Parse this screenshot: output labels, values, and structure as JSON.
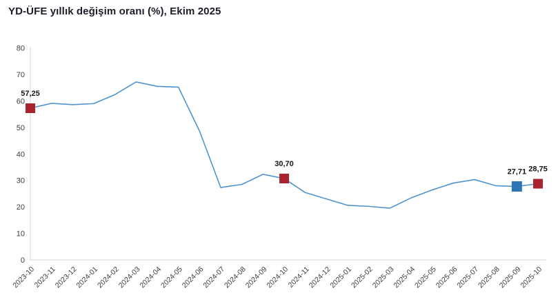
{
  "title": "YD-ÜFE yıllık değişim oranı (%), Ekim 2025",
  "colors": {
    "background": "#ffffff",
    "title_text": "#1b1e28",
    "line": "#4f93ce",
    "marker_red": "#ab232e",
    "marker_blue": "#2e75b6",
    "axis_line": "#d6d6d6",
    "tick_text": "#3c3c3c",
    "data_label_text": "#141414"
  },
  "chart_data": {
    "type": "line",
    "title": "YD-ÜFE yıllık değişim oranı (%), Ekim 2025",
    "xlabel": "",
    "ylabel": "",
    "ylim": [
      0,
      80
    ],
    "yticks": [
      0,
      10,
      20,
      30,
      40,
      50,
      60,
      70,
      80
    ],
    "grid": false,
    "legend": "none",
    "categories": [
      "2023-10",
      "2023-11",
      "2023-12",
      "2024-01",
      "2024-02",
      "2024-03",
      "2024-04",
      "2024-05",
      "2024-06",
      "2024-07",
      "2024-08",
      "2024-09",
      "2024-10",
      "2024-11",
      "2024-12",
      "2025-01",
      "2025-02",
      "2025-03",
      "2025-04",
      "2025-05",
      "2025-06",
      "2025-07",
      "2025-08",
      "2025-09",
      "2025-10"
    ],
    "values": [
      57.25,
      59.1,
      58.6,
      59.0,
      62.4,
      67.2,
      65.5,
      65.2,
      48.6,
      27.3,
      28.5,
      32.3,
      30.7,
      25.4,
      23.0,
      20.6,
      20.2,
      19.5,
      23.4,
      26.4,
      29.0,
      30.3,
      28.0,
      27.71,
      28.75
    ],
    "annotated_points": [
      {
        "index": 0,
        "category": "2023-10",
        "value": 57.25,
        "label": "57,25",
        "marker_color": "red"
      },
      {
        "index": 12,
        "category": "2024-10",
        "value": 30.7,
        "label": "30,70",
        "marker_color": "red"
      },
      {
        "index": 23,
        "category": "2025-09",
        "value": 27.71,
        "label": "27,71",
        "marker_color": "blue"
      },
      {
        "index": 24,
        "category": "2025-10",
        "value": 28.75,
        "label": "28,75",
        "marker_color": "red"
      }
    ]
  }
}
